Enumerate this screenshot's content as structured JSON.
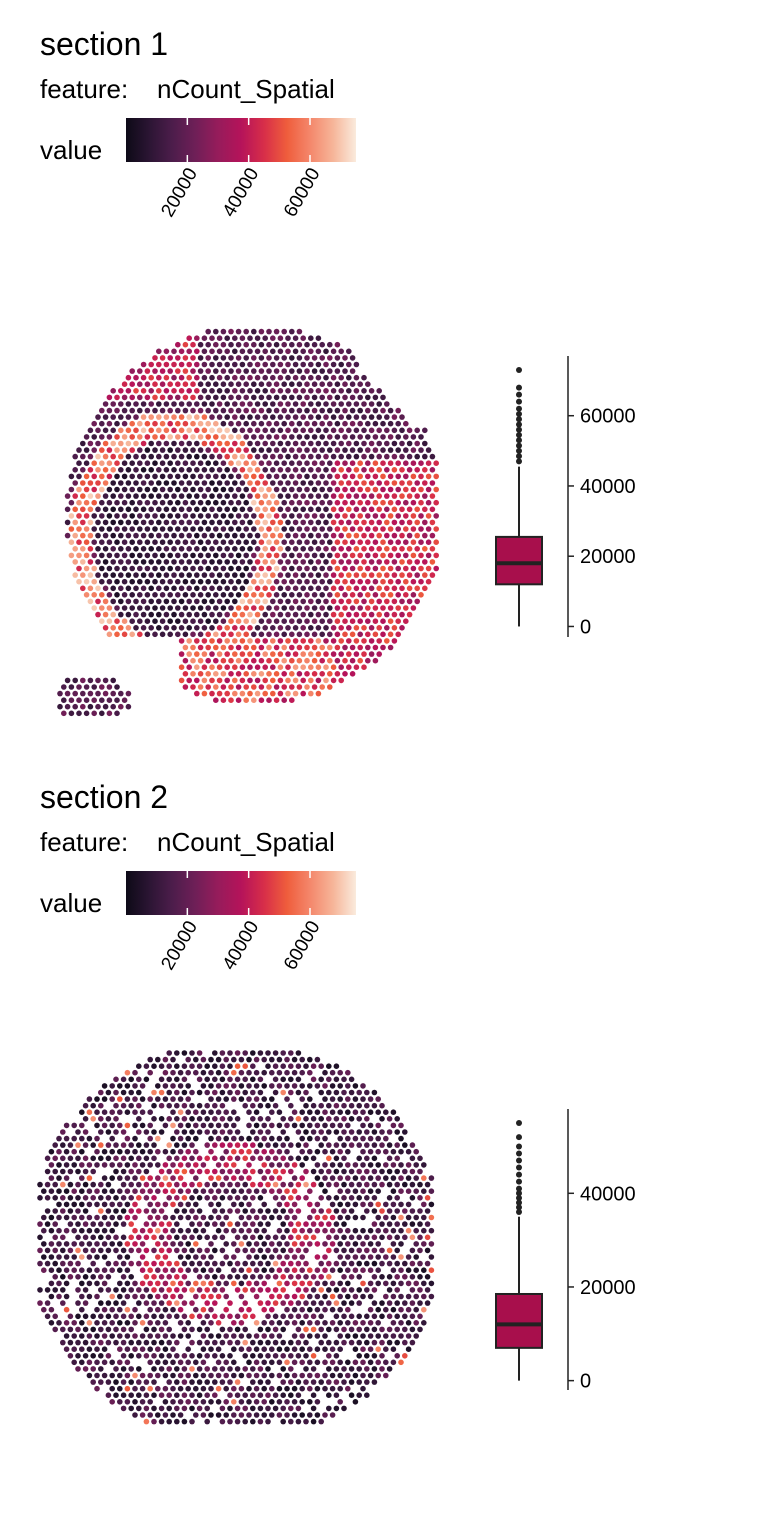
{
  "colors": {
    "scale": [
      "#0d0a17",
      "#2b1533",
      "#4c1d4b",
      "#6e1f57",
      "#961c5b",
      "#b5135a",
      "#d72e49",
      "#ef5d3c",
      "#f4876b",
      "#f6b599",
      "#faebdd"
    ],
    "box_fill": "#a80f4c",
    "stroke": "#222222"
  },
  "chart_data": [
    {
      "type": "spatial-scatter+box",
      "title": "section 1",
      "feature_label": "feature:",
      "feature": "nCount_Spatial",
      "legend_title": "value",
      "colorbar_range": [
        0,
        75000
      ],
      "colorbar_ticks": [
        "20000",
        "40000",
        "60000"
      ],
      "colorbar_tick_values": [
        20000,
        40000,
        60000
      ],
      "box": {
        "min": 0,
        "q1": 12000,
        "median": 18000,
        "q3": 25500,
        "whisker_high": 45500,
        "outliers": [
          47000,
          48500,
          50000,
          51500,
          53000,
          54500,
          56000,
          57500,
          59000,
          60500,
          62000,
          64000,
          66000,
          68000,
          73000
        ],
        "ylim": [
          -3000,
          77000
        ],
        "yticks": [
          "0",
          "20000",
          "40000",
          "60000"
        ],
        "ytick_values": [
          0,
          20000,
          40000,
          60000
        ]
      }
    },
    {
      "type": "spatial-scatter+box",
      "title": "section 2",
      "feature_label": "feature:",
      "feature": "nCount_Spatial",
      "legend_title": "value",
      "colorbar_range": [
        0,
        75000
      ],
      "colorbar_ticks": [
        "20000",
        "40000",
        "60000"
      ],
      "colorbar_tick_values": [
        20000,
        40000,
        60000
      ],
      "box": {
        "min": 0,
        "q1": 7000,
        "median": 12000,
        "q3": 18500,
        "whisker_high": 35000,
        "outliers": [
          36000,
          37000,
          38000,
          39000,
          40000,
          41000,
          42500,
          44000,
          45500,
          47000,
          48500,
          50000,
          52000,
          55000
        ],
        "ylim": [
          -2000,
          58000
        ],
        "yticks": [
          "0",
          "20000",
          "40000"
        ],
        "ytick_values": [
          0,
          20000,
          40000
        ]
      }
    }
  ]
}
